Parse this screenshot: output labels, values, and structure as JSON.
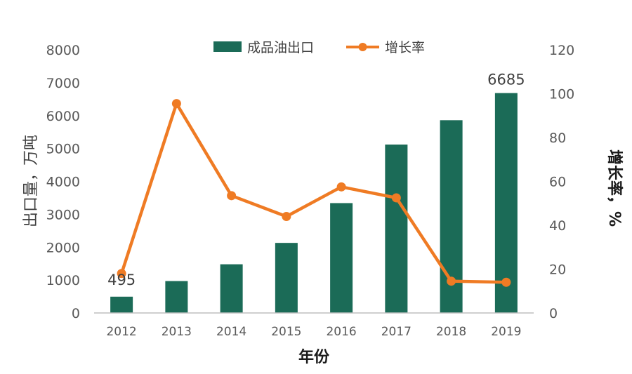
{
  "chart_data": {
    "type": "bar+line",
    "categories": [
      "2012",
      "2013",
      "2014",
      "2015",
      "2016",
      "2017",
      "2018",
      "2019"
    ],
    "series": [
      {
        "name": "成品油出口",
        "type": "bar",
        "axis": "left",
        "color": "#1b6b57",
        "values": [
          495,
          970,
          1480,
          2130,
          3340,
          5120,
          5860,
          6685
        ]
      },
      {
        "name": "增长率",
        "type": "line",
        "axis": "right",
        "color": "#ef7b24",
        "values": [
          18,
          95.5,
          53.5,
          44,
          57.5,
          52.5,
          14.5,
          14
        ]
      }
    ],
    "data_labels": [
      {
        "category": "2012",
        "text": "495"
      },
      {
        "category": "2019",
        "text": "6685"
      }
    ],
    "y_left": {
      "label": "出口量，万吨",
      "lim": [
        0,
        8000
      ],
      "ticks": [
        "0",
        "1000",
        "2000",
        "3000",
        "4000",
        "5000",
        "6000",
        "7000",
        "8000"
      ]
    },
    "y_right": {
      "label": "增长率，%",
      "lim": [
        0,
        120
      ],
      "ticks": [
        "0",
        "20",
        "40",
        "60",
        "80",
        "100",
        "120"
      ]
    },
    "xlabel": "年份",
    "legend": {
      "placement": "top-center"
    },
    "grid": false
  }
}
